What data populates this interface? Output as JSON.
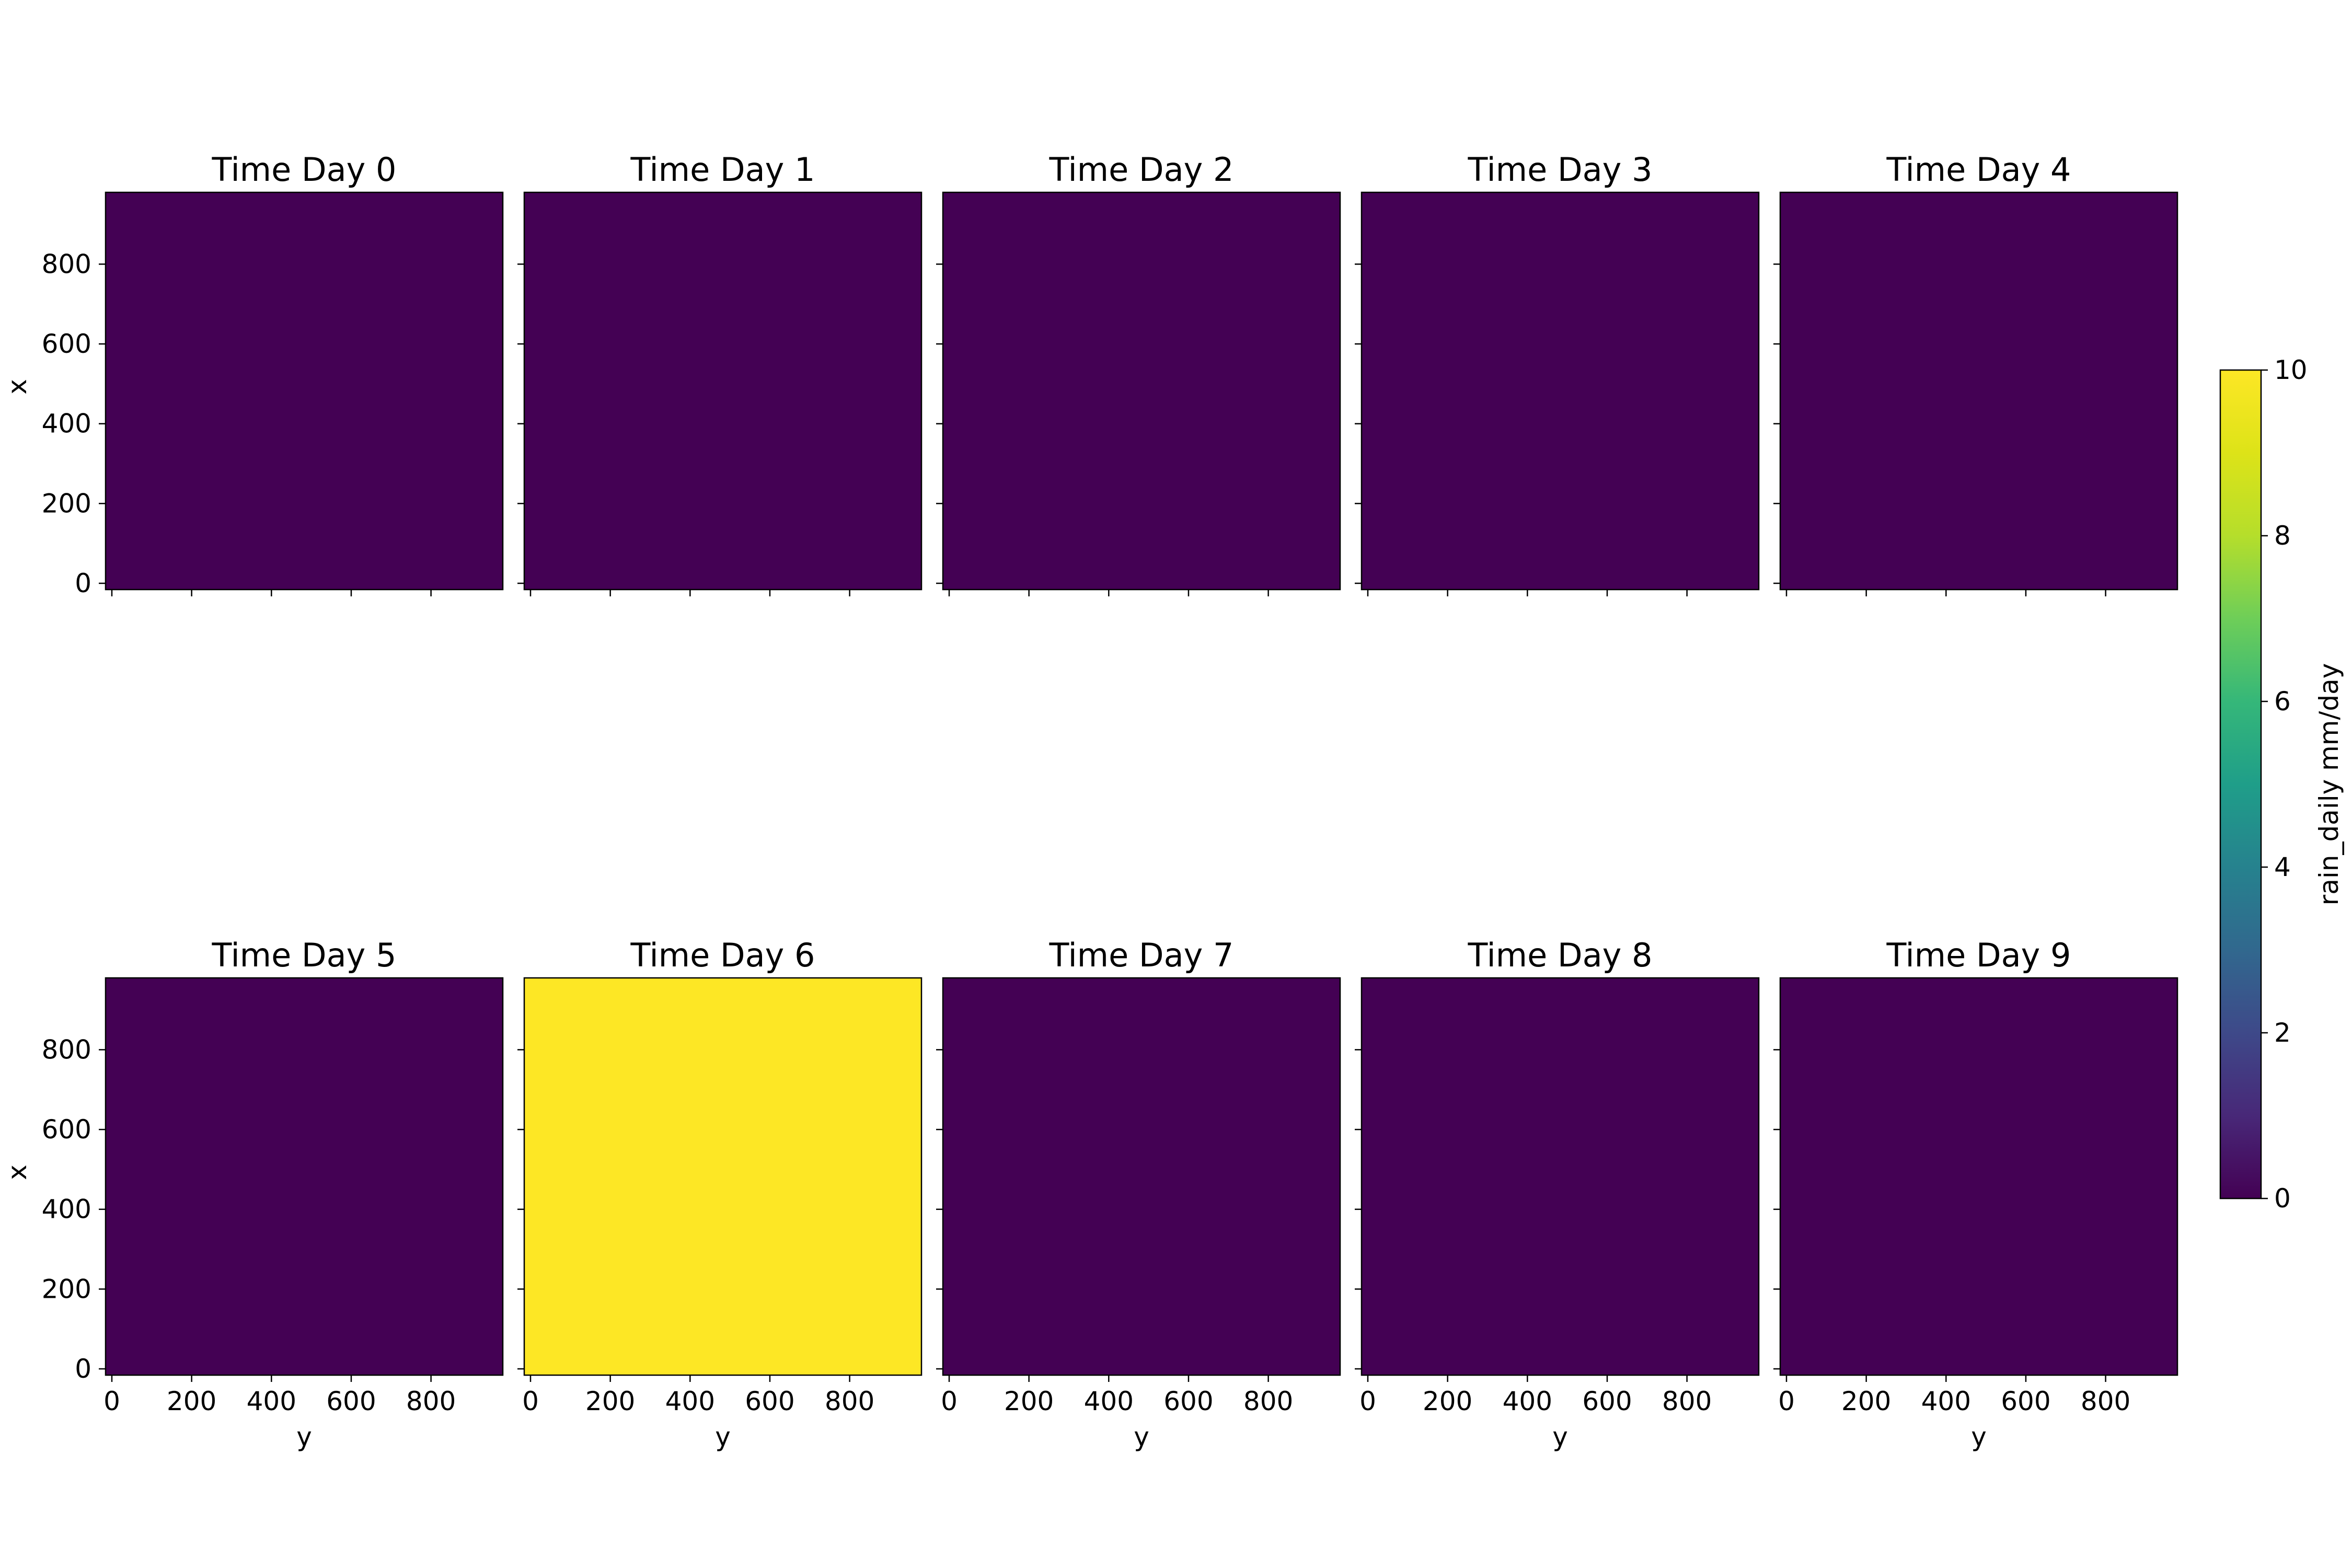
{
  "chart_data": {
    "type": "heatmap",
    "colormap": "viridis",
    "xlabel": "y",
    "ylabel": "x",
    "x_ticks": [
      0,
      200,
      400,
      600,
      800
    ],
    "y_ticks": [
      0,
      200,
      400,
      600,
      800
    ],
    "axis_range": [
      0,
      980
    ],
    "colorbar": {
      "label": "rain_daily mm/day",
      "range": [
        0,
        10
      ],
      "ticks": [
        0,
        2,
        4,
        6,
        8,
        10
      ]
    },
    "panels": [
      {
        "title": "Time Day 0",
        "value": 0
      },
      {
        "title": "Time Day 1",
        "value": 0
      },
      {
        "title": "Time Day 2",
        "value": 0
      },
      {
        "title": "Time Day 3",
        "value": 0
      },
      {
        "title": "Time Day 4",
        "value": 0
      },
      {
        "title": "Time Day 5",
        "value": 0
      },
      {
        "title": "Time Day 6",
        "value": 10
      },
      {
        "title": "Time Day 7",
        "value": 0
      },
      {
        "title": "Time Day 8",
        "value": 0
      },
      {
        "title": "Time Day 9",
        "value": 0
      }
    ]
  }
}
